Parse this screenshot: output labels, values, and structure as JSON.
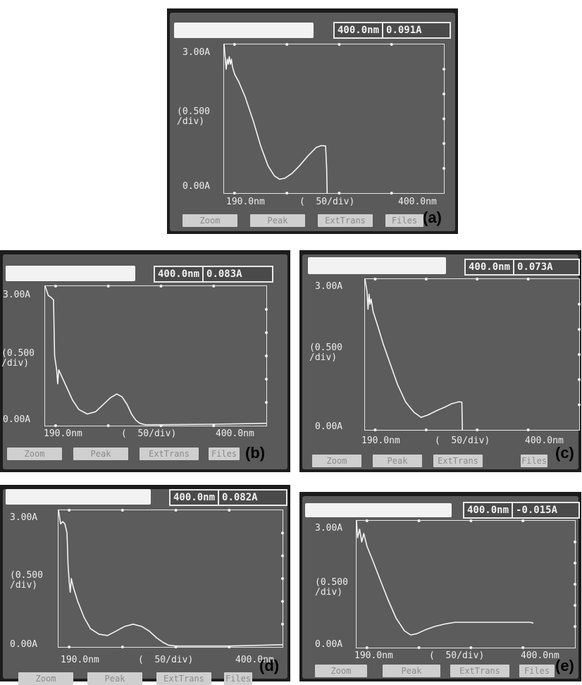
{
  "chart_data": [
    {
      "id": "a",
      "panel_label": "(a)",
      "type": "line",
      "readout_wavelength": "400.0nm",
      "readout_absorbance": "0.091A",
      "y_top_label": "3.00A",
      "y_scale_label": "(0.500\n/div)",
      "y_bottom_label": "0.00A",
      "x_start_label": "190.0nm",
      "x_scale_label": "(  50/div)",
      "x_end_label": "400.0nm",
      "softkeys": [
        "Zoom",
        "Peak",
        "ExtTrans",
        "Files"
      ],
      "xlim": [
        190,
        400
      ],
      "ylim": [
        0,
        3.0
      ],
      "x": [
        190,
        192,
        193,
        194,
        195,
        196,
        197,
        198,
        200,
        204,
        210,
        218,
        225,
        232,
        238,
        243,
        248,
        255,
        262,
        270,
        278,
        283,
        287,
        288,
        288.5
      ],
      "y": [
        3.0,
        2.5,
        2.7,
        2.6,
        2.75,
        2.6,
        2.7,
        2.55,
        2.4,
        2.25,
        1.95,
        1.45,
        0.95,
        0.55,
        0.35,
        0.28,
        0.3,
        0.4,
        0.55,
        0.75,
        0.92,
        0.96,
        0.95,
        0.5,
        0.0
      ]
    },
    {
      "id": "b",
      "panel_label": "(b)",
      "type": "line",
      "readout_wavelength": "400.0nm",
      "readout_absorbance": "0.083A",
      "y_top_label": "3.00A",
      "y_scale_label": "(0.500\n/div)",
      "y_bottom_label": "0.00A",
      "x_start_label": "190.0nm",
      "x_scale_label": "(  50/div)",
      "x_end_label": "400.0nm",
      "softkeys": [
        "Zoom",
        "Peak",
        "ExtTrans",
        "Files"
      ],
      "xlim": [
        190,
        400
      ],
      "ylim": [
        0,
        3.0
      ],
      "x": [
        190,
        193,
        196,
        198,
        199,
        200,
        201,
        202,
        203,
        205,
        210,
        216,
        222,
        230,
        238,
        245,
        252,
        258,
        263,
        268,
        272,
        276,
        280,
        285,
        300,
        350,
        400
      ],
      "y": [
        3.0,
        2.8,
        2.75,
        2.7,
        1.5,
        1.35,
        1.2,
        0.9,
        1.2,
        1.1,
        0.85,
        0.55,
        0.35,
        0.25,
        0.3,
        0.45,
        0.6,
        0.68,
        0.62,
        0.45,
        0.25,
        0.12,
        0.05,
        0.02,
        0.02,
        0.03,
        0.05
      ]
    },
    {
      "id": "c",
      "panel_label": "(c)",
      "type": "line",
      "readout_wavelength": "400.0nm",
      "readout_absorbance": "0.073A",
      "y_top_label": "3.00A",
      "y_scale_label": "(0.500\n/div)",
      "y_bottom_label": "0.00A",
      "x_start_label": "190.0nm",
      "x_scale_label": "(  50/div)",
      "x_end_label": "400.0nm",
      "softkeys": [
        "Zoom",
        "Peak",
        "ExtTrans",
        "Files"
      ],
      "xlim": [
        190,
        400
      ],
      "ylim": [
        0,
        3.0
      ],
      "x": [
        190,
        192,
        193,
        194,
        195,
        196,
        198,
        202,
        208,
        215,
        222,
        230,
        238,
        245,
        252,
        260,
        268,
        275,
        282,
        285,
        285.5
      ],
      "y": [
        3.0,
        2.75,
        2.4,
        2.7,
        2.5,
        2.6,
        2.35,
        2.1,
        1.7,
        1.3,
        0.9,
        0.55,
        0.35,
        0.25,
        0.3,
        0.38,
        0.45,
        0.52,
        0.56,
        0.55,
        0.0
      ]
    },
    {
      "id": "d",
      "panel_label": "(d)",
      "type": "line",
      "readout_wavelength": "400.0nm",
      "readout_absorbance": "0.082A",
      "y_top_label": "3.00A",
      "y_scale_label": "(0.500\n/div)",
      "y_bottom_label": "0.00A",
      "x_start_label": "190.0nm",
      "x_scale_label": "(  50/div)",
      "x_end_label": "400.0nm",
      "softkeys": [
        "Zoom",
        "Peak",
        "ExtTrans",
        "Files"
      ],
      "xlim": [
        190,
        400
      ],
      "ylim": [
        0,
        3.0
      ],
      "x": [
        190,
        192,
        194,
        196,
        198,
        199,
        200,
        201,
        202,
        204,
        208,
        214,
        220,
        228,
        236,
        244,
        252,
        260,
        268,
        275,
        282,
        288,
        293,
        300,
        350,
        400
      ],
      "y": [
        3.0,
        2.7,
        2.75,
        2.7,
        2.5,
        1.8,
        1.45,
        1.2,
        1.5,
        1.3,
        1.0,
        0.65,
        0.4,
        0.28,
        0.25,
        0.35,
        0.45,
        0.5,
        0.45,
        0.35,
        0.2,
        0.1,
        0.04,
        0.02,
        0.02,
        0.05
      ]
    },
    {
      "id": "e",
      "panel_label": "(e)",
      "type": "line",
      "readout_wavelength": "400.0nm",
      "readout_absorbance": "-0.015A",
      "y_top_label": "3.00A",
      "y_scale_label": "(0.500\n/div)",
      "y_bottom_label": "0.00A",
      "x_start_label": "190.0nm",
      "x_scale_label": "(  50/div)",
      "x_end_label": "400.0nm",
      "softkeys": [
        "Zoom",
        "Peak",
        "ExtTrans",
        "Files"
      ],
      "xlim": [
        190,
        400
      ],
      "ylim": [
        0,
        3.0
      ],
      "x": [
        190,
        191,
        193,
        195,
        197,
        200,
        205,
        212,
        220,
        228,
        236,
        242,
        248,
        256,
        265,
        275,
        285,
        300,
        320,
        340,
        357,
        360
      ],
      "y": [
        3.0,
        2.6,
        2.8,
        2.5,
        2.7,
        2.4,
        2.1,
        1.65,
        1.15,
        0.7,
        0.4,
        0.3,
        0.33,
        0.42,
        0.5,
        0.56,
        0.6,
        0.6,
        0.6,
        0.6,
        0.6,
        0.58
      ]
    }
  ]
}
